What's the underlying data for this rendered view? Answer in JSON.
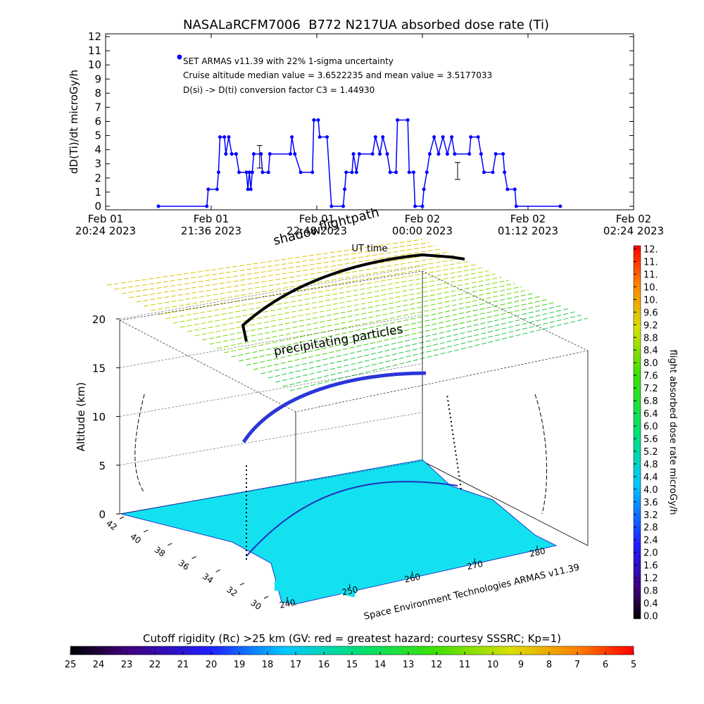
{
  "chart_data": [
    {
      "type": "line",
      "title": "NASALaRCFM7006  B772 N217UA absorbed dose rate (Ti)",
      "ylabel": "dD(Ti)/dt microGy/h",
      "annotations": [
        "Cruise altitude median value = 3.6522235 and mean value = 3.5177033",
        "D(si) -> D(ti) conversion factor C3 = 1.44930"
      ],
      "xlim": [
        "2023-02-01T20:24",
        "2023-02-02T02:24"
      ],
      "xticks": [
        {
          "value": "2023-02-01T20:24",
          "label": [
            "Feb 01",
            "20:24 2023"
          ]
        },
        {
          "value": "2023-02-01T21:36",
          "label": [
            "Feb 01",
            "21:36 2023"
          ]
        },
        {
          "value": "2023-02-01T22:48",
          "label": [
            "Feb 01",
            "22:48 2023"
          ]
        },
        {
          "value": "2023-02-02T00:00",
          "label": [
            "Feb 02",
            "00:00 2023"
          ]
        },
        {
          "value": "2023-02-02T01:12",
          "label": [
            "Feb 02",
            "01:12 2023"
          ]
        },
        {
          "value": "2023-02-02T02:24",
          "label": [
            "Feb 02",
            "02:24 2023"
          ]
        }
      ],
      "ylim": [
        -0.25,
        12.2
      ],
      "yticks": [
        0,
        1,
        2,
        3,
        4,
        5,
        6,
        7,
        8,
        9,
        10,
        11,
        12
      ],
      "series": [
        {
          "name": "SET ARMAS v11.39 with 22% 1-sigma uncertainty",
          "color": "#0000ff",
          "x": [
            "2023-02-01T21:00",
            "2023-02-01T21:33",
            "2023-02-01T21:34",
            "2023-02-01T21:40",
            "2023-02-01T21:41",
            "2023-02-01T21:42",
            "2023-02-01T21:45",
            "2023-02-01T21:46",
            "2023-02-01T21:48",
            "2023-02-01T21:50",
            "2023-02-01T21:53",
            "2023-02-01T21:55",
            "2023-02-01T22:00",
            "2023-02-01T22:01",
            "2023-02-01T22:02",
            "2023-02-01T22:03",
            "2023-02-01T22:04",
            "2023-02-01T22:05",
            "2023-02-01T22:10",
            "2023-02-01T22:11",
            "2023-02-01T22:15",
            "2023-02-01T22:16",
            "2023-02-01T22:30",
            "2023-02-01T22:31",
            "2023-02-01T22:33",
            "2023-02-01T22:37",
            "2023-02-01T22:45",
            "2023-02-01T22:46",
            "2023-02-01T22:49",
            "2023-02-01T22:50",
            "2023-02-01T22:55",
            "2023-02-01T22:58",
            "2023-02-01T23:06",
            "2023-02-01T23:07",
            "2023-02-01T23:08",
            "2023-02-01T23:12",
            "2023-02-01T23:13",
            "2023-02-01T23:15",
            "2023-02-01T23:17",
            "2023-02-01T23:26",
            "2023-02-01T23:28",
            "2023-02-01T23:31",
            "2023-02-01T23:33",
            "2023-02-01T23:36",
            "2023-02-01T23:38",
            "2023-02-01T23:42",
            "2023-02-01T23:43",
            "2023-02-01T23:50",
            "2023-02-01T23:51",
            "2023-02-01T23:54",
            "2023-02-01T23:55",
            "2023-02-02T00:00",
            "2023-02-02T00:01",
            "2023-02-02T00:03",
            "2023-02-02T00:05",
            "2023-02-02T00:08",
            "2023-02-02T00:11",
            "2023-02-02T00:14",
            "2023-02-02T00:17",
            "2023-02-02T00:20",
            "2023-02-02T00:22",
            "2023-02-02T00:32",
            "2023-02-02T00:33",
            "2023-02-02T00:38",
            "2023-02-02T00:40",
            "2023-02-02T00:42",
            "2023-02-02T00:48",
            "2023-02-02T00:50",
            "2023-02-02T00:55",
            "2023-02-02T00:56",
            "2023-02-02T00:58",
            "2023-02-02T01:03",
            "2023-02-02T01:04",
            "2023-02-02T01:34"
          ],
          "values": [
            0,
            0,
            1.2,
            1.2,
            2.4,
            4.9,
            4.9,
            3.7,
            4.9,
            3.7,
            3.7,
            2.4,
            2.4,
            1.2,
            2.4,
            1.2,
            2.4,
            3.7,
            3.7,
            2.4,
            2.4,
            3.7,
            3.7,
            4.9,
            3.7,
            2.4,
            2.4,
            6.1,
            6.1,
            4.9,
            4.9,
            0,
            0,
            1.2,
            2.4,
            2.4,
            3.7,
            2.4,
            3.7,
            3.7,
            4.9,
            3.7,
            4.9,
            3.7,
            2.4,
            2.4,
            6.1,
            6.1,
            2.4,
            2.4,
            0,
            0,
            1.2,
            2.4,
            3.7,
            4.9,
            3.7,
            4.9,
            3.7,
            4.9,
            3.7,
            3.7,
            4.9,
            4.9,
            3.7,
            2.4,
            2.4,
            3.7,
            3.7,
            2.4,
            1.2,
            1.2,
            0,
            0
          ]
        }
      ],
      "error_bars": {
        "color": "#000000",
        "x": [
          "2023-02-01T22:09",
          "2023-02-02T00:24"
        ],
        "values": [
          3.5,
          2.5
        ],
        "errors": [
          0.8,
          0.6
        ]
      }
    },
    {
      "type": "surface3d",
      "zlabel": "Altitude (km)",
      "zlim": [
        0,
        20
      ],
      "zticks": [
        0,
        5,
        10,
        15,
        20
      ],
      "ylim": [
        42,
        30
      ],
      "yticks": [
        42,
        40,
        38,
        36,
        34,
        32,
        30
      ],
      "xlim": [
        240,
        280
      ],
      "xticks": [
        240,
        250,
        260,
        270,
        280
      ],
      "annotations": [
        "shadow",
        "flightpath",
        "UT time",
        "precipitating particles"
      ],
      "credit": "Space Environment Technologies ARMAS v11.39",
      "colorbar": {
        "label": "flight absorbed dose rate microGy/h",
        "lim": [
          -0.1,
          11.7
        ],
        "ticks": [
          {
            "value": 0,
            "label": "0.0"
          },
          0.4,
          0.8,
          1.2,
          1.6,
          {
            "value": 2,
            "label": "2.0"
          },
          2.4,
          2.8,
          3.2,
          3.6,
          {
            "value": 4,
            "label": "4.0"
          },
          4.4,
          4.8,
          5.2,
          5.6,
          {
            "value": 6,
            "label": "6.0"
          },
          6.4,
          6.8,
          7.2,
          7.6,
          {
            "value": 8,
            "label": "8.0"
          },
          8.4,
          8.8,
          9.2,
          9.6,
          {
            "value": 10,
            "label": "10."
          },
          {
            "value": 10.4,
            "label": "10."
          },
          {
            "value": 10.8,
            "label": "11."
          },
          {
            "value": 11.2,
            "label": "11."
          },
          {
            "value": 11.6,
            "label": "12."
          }
        ]
      },
      "colorbar2": {
        "title": "Cutoff rigidity (Rc) >25 km (GV: red = greatest hazard; courtesy SSSRC; Kp=1)",
        "lim": [
          25,
          5
        ],
        "ticks": [
          25,
          24,
          23,
          22,
          21,
          20,
          19,
          18,
          17,
          16,
          15,
          14,
          13,
          12,
          11,
          10,
          9,
          8,
          7,
          6,
          5
        ]
      }
    }
  ]
}
